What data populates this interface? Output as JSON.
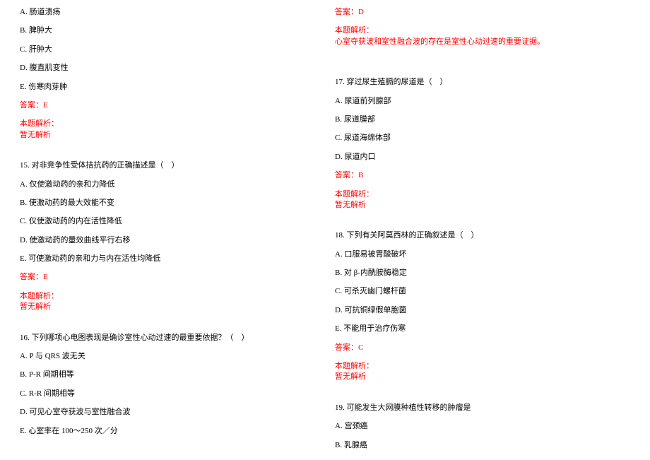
{
  "colors": {
    "text": "#000000",
    "red": "#ff0000",
    "background": "#ffffff"
  },
  "typography": {
    "font_family": "SimSun",
    "font_size_pt": 9,
    "line_height": 1.4
  },
  "left": {
    "q14_options": {
      "a": "A. 肠道溃疡",
      "b": "B. 脾肿大",
      "c": "C. 肝肿大",
      "d": "D. 腹直肌变性",
      "e": "E. 伤寒肉芽肿"
    },
    "q14_answer": "答案：E",
    "q14_analysis_label": "本题解析：",
    "q14_analysis": "暂无解析",
    "q15_stem": "15. 对非竞争性受体拮抗药的正确描述是（　）",
    "q15_options": {
      "a": "A. 仅使激动药的亲和力降低",
      "b": "B. 使激动药的最大效能不变",
      "c": "C. 仅使激动药的内在活性降低",
      "d": "D. 使激动药的量效曲线平行右移",
      "e": "E. 可使激动药的亲和力与内在活性均降低"
    },
    "q15_answer": "答案：E",
    "q15_analysis_label": "本题解析：",
    "q15_analysis": "暂无解析",
    "q16_stem": "16. 下列哪项心电图表现是确诊室性心动过速的最重要依据？（　）",
    "q16_options": {
      "a": "A. P 与 QRS 波无关",
      "b": "B. P-R 间期相等",
      "c": "C. R-R 间期相等",
      "d": "D. 可见心室夺获波与室性融合波",
      "e": "E. 心室率在 100～250 次／分"
    }
  },
  "right": {
    "q16_answer": "答案：D",
    "q16_analysis_label": "本题解析：",
    "q16_analysis": "心室夺获波和室性融合波的存在是室性心动过速的重要证据。",
    "q17_stem": "17. 穿过尿生殖膈的尿道是（　）",
    "q17_options": {
      "a": "A. 尿道前列腺部",
      "b": "B. 尿道膜部",
      "c": "C. 尿道海绵体部",
      "d": "D. 尿道内口"
    },
    "q17_answer": "答案：B",
    "q17_analysis_label": "本题解析：",
    "q17_analysis": "暂无解析",
    "q18_stem": "18. 下列有关阿莫西林的正确叙述是（　）",
    "q18_options": {
      "a": "A. 口服易被胃酸破坏",
      "b": "B. 对 β-内酰胺酶稳定",
      "c": "C. 可杀灭幽门螺杆菌",
      "d": "D. 可抗铜绿假单胞菌",
      "e": "E. 不能用于治疗伤寒"
    },
    "q18_answer": "答案：C",
    "q18_analysis_label": "本题解析：",
    "q18_analysis": "暂无解析",
    "q19_stem": "19. 可能发生大网膜种植性转移的肿瘤是",
    "q19_options": {
      "a": "A. 宫颈癌",
      "b": "B. 乳腺癌"
    }
  }
}
